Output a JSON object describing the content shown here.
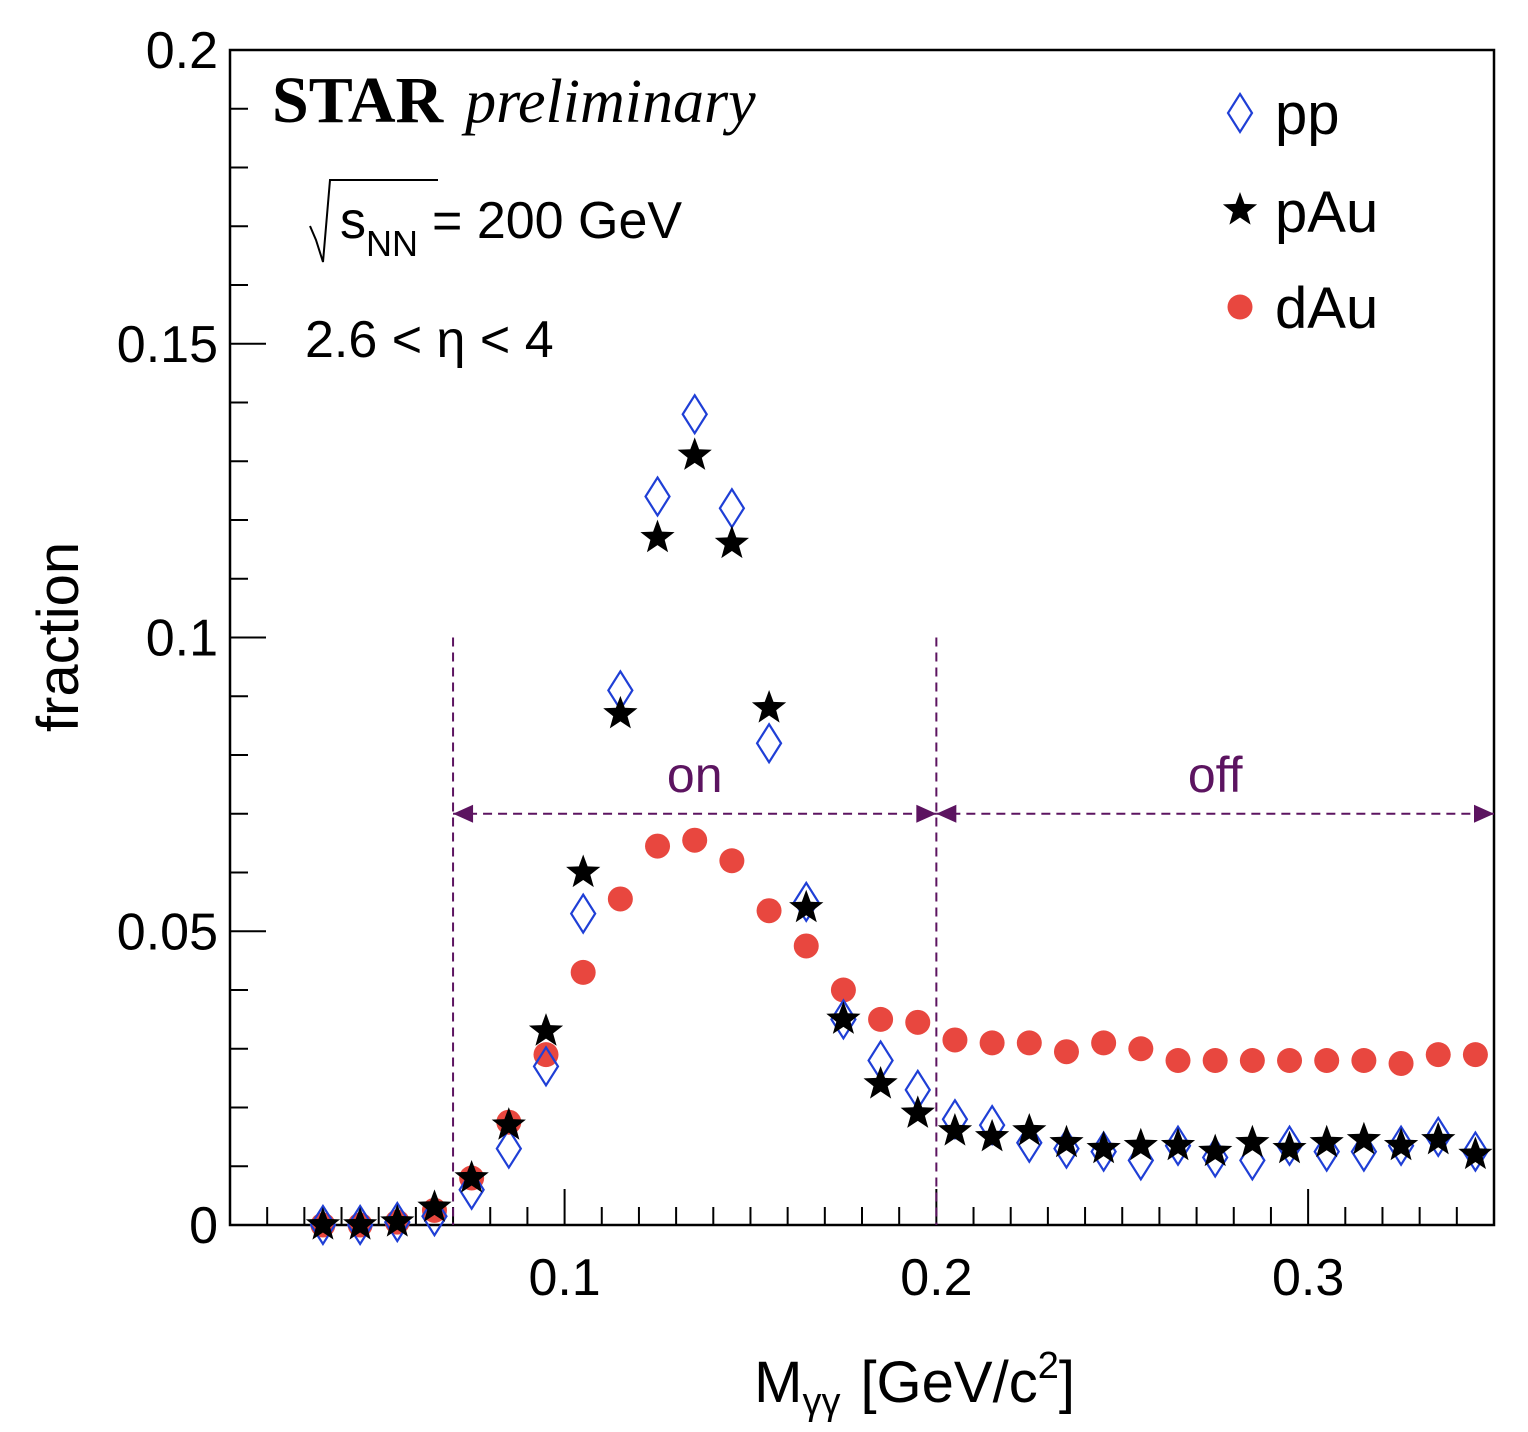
{
  "chart_data": {
    "type": "scatter",
    "title": "",
    "xlabel": "M",
    "xlabel_sub": "γγ",
    "xlabel_unit_prefix": "[GeV/c",
    "xlabel_unit_sup": "2",
    "xlabel_unit_suffix": "]",
    "ylabel": "fraction",
    "xlim": [
      0.01,
      0.35
    ],
    "ylim": [
      0,
      0.2
    ],
    "x_ticks": [
      "0.1",
      "0.2",
      "0.3"
    ],
    "y_ticks": [
      "0",
      "0.05",
      "0.1",
      "0.15",
      "0.2"
    ],
    "grid": false,
    "legend_position": "top-right",
    "series": [
      {
        "name": "pp",
        "marker": "open-diamond",
        "color": "#1f3fd6",
        "x": [
          0.035,
          0.045,
          0.055,
          0.065,
          0.075,
          0.085,
          0.095,
          0.105,
          0.115,
          0.125,
          0.135,
          0.145,
          0.155,
          0.165,
          0.175,
          0.185,
          0.195,
          0.205,
          0.215,
          0.225,
          0.235,
          0.245,
          0.255,
          0.265,
          0.275,
          0.285,
          0.295,
          0.305,
          0.315,
          0.325,
          0.335,
          0.345
        ],
        "y": [
          0.0,
          0.0,
          0.0005,
          0.0015,
          0.006,
          0.013,
          0.027,
          0.053,
          0.091,
          0.124,
          0.138,
          0.122,
          0.082,
          0.055,
          0.035,
          0.028,
          0.023,
          0.018,
          0.017,
          0.014,
          0.013,
          0.0125,
          0.011,
          0.0135,
          0.0115,
          0.011,
          0.0135,
          0.0125,
          0.0125,
          0.0135,
          0.015,
          0.0125
        ]
      },
      {
        "name": "pAu",
        "marker": "filled-star",
        "color": "#000000",
        "x": [
          0.035,
          0.045,
          0.055,
          0.065,
          0.075,
          0.085,
          0.095,
          0.105,
          0.115,
          0.125,
          0.135,
          0.145,
          0.155,
          0.165,
          0.175,
          0.185,
          0.195,
          0.205,
          0.215,
          0.225,
          0.235,
          0.245,
          0.255,
          0.265,
          0.275,
          0.285,
          0.295,
          0.305,
          0.315,
          0.325,
          0.335,
          0.345
        ],
        "y": [
          0.0,
          0.0,
          0.0005,
          0.003,
          0.008,
          0.017,
          0.033,
          0.06,
          0.087,
          0.117,
          0.131,
          0.116,
          0.088,
          0.054,
          0.035,
          0.024,
          0.019,
          0.016,
          0.015,
          0.016,
          0.014,
          0.013,
          0.0135,
          0.0135,
          0.0125,
          0.014,
          0.013,
          0.014,
          0.0145,
          0.0135,
          0.0145,
          0.012
        ]
      },
      {
        "name": "dAu",
        "marker": "filled-circle",
        "color": "#e8473f",
        "x": [
          0.035,
          0.045,
          0.055,
          0.065,
          0.075,
          0.085,
          0.095,
          0.105,
          0.115,
          0.125,
          0.135,
          0.145,
          0.155,
          0.165,
          0.175,
          0.185,
          0.195,
          0.205,
          0.215,
          0.225,
          0.235,
          0.245,
          0.255,
          0.265,
          0.275,
          0.285,
          0.295,
          0.305,
          0.315,
          0.325,
          0.335,
          0.345
        ],
        "y": [
          0.0,
          0.0,
          0.0005,
          0.0025,
          0.008,
          0.0175,
          0.029,
          0.043,
          0.0555,
          0.0645,
          0.0655,
          0.062,
          0.0535,
          0.0475,
          0.04,
          0.035,
          0.0345,
          0.0315,
          0.031,
          0.031,
          0.0295,
          0.031,
          0.03,
          0.028,
          0.028,
          0.028,
          0.028,
          0.028,
          0.028,
          0.0275,
          0.029,
          0.029
        ]
      }
    ],
    "annotations": {
      "experiment": "STAR",
      "status": "preliminary",
      "energy_symbol": "s",
      "energy_sub": "NN",
      "energy_text": "= 200 GeV",
      "eta_range": "2.6 < η < 4",
      "region_color": "#5c1460",
      "regions": [
        {
          "label": "on",
          "x_start": 0.07,
          "x_end": 0.2,
          "y_arrow": 0.07
        },
        {
          "label": "off",
          "x_start": 0.2,
          "x_end": 0.35,
          "y_arrow": 0.07
        }
      ]
    }
  }
}
